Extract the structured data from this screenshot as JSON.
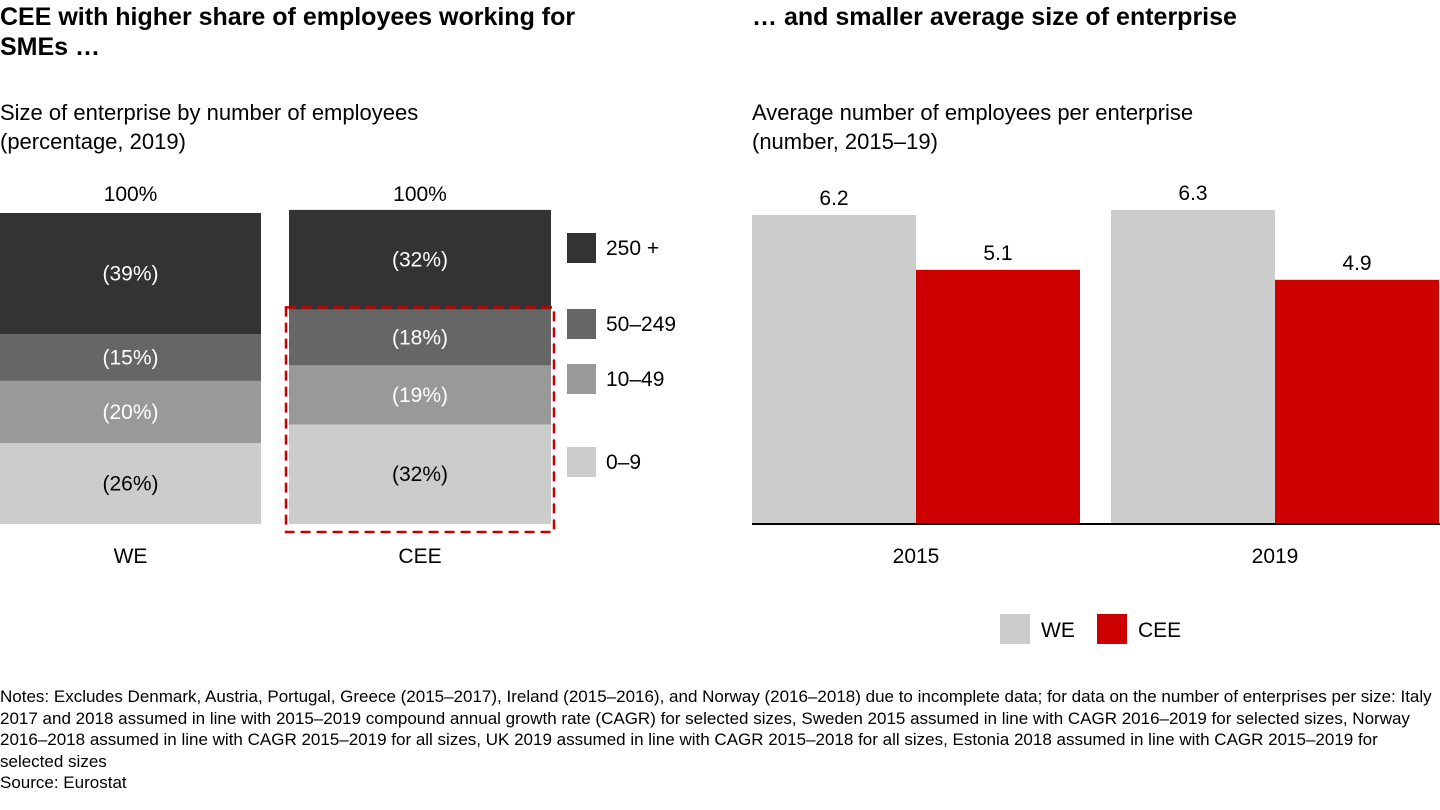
{
  "left_title": "CEE with higher share of employees working for SMEs …",
  "left_subtitle_line1": "Size of enterprise by number of employees",
  "left_subtitle_line2": "(percentage, 2019)",
  "right_title": "… and smaller average size of enterprise",
  "right_subtitle_line1": "Average number of employees per enterprise",
  "right_subtitle_line2": "(number, 2015–19)",
  "notes": "Notes: Excludes Denmark, Austria, Portugal, Greece (2015–2017), Ireland (2015–2016), and Norway (2016–2018) due to incomplete data; for data on the number of enterprises per size: Italy 2017 and 2018 assumed in line with 2015–2019 compound annual growth rate (CAGR) for selected sizes, Sweden 2015 assumed in line with CAGR 2016–2019 for selected sizes, Norway 2016–2018 assumed in line with CAGR 2015–2019 for all sizes, UK 2019 assumed in line with CAGR 2015–2018 for all sizes, Estonia 2018 assumed in line with CAGR 2015–2019 for selected sizes",
  "source": "Source: Eurostat",
  "colors": {
    "s250": "#333333",
    "s50": "#666666",
    "s10": "#999999",
    "s0": "#cccccc",
    "we": "#cccccc",
    "cee": "#cc0000",
    "highlight": "#cc0000"
  },
  "chart_data": [
    {
      "type": "bar",
      "stacked": true,
      "categories": [
        "WE",
        "CEE"
      ],
      "totals_labels": [
        "100%",
        "100%"
      ],
      "series": [
        {
          "name": "0–9",
          "values": [
            26,
            32
          ],
          "labels": [
            "(26%)",
            "(32%)"
          ]
        },
        {
          "name": "10–49",
          "values": [
            20,
            19
          ],
          "labels": [
            "(20%)",
            "(19%)"
          ]
        },
        {
          "name": "50–249",
          "values": [
            15,
            18
          ],
          "labels": [
            "(15%)",
            "(18%)"
          ]
        },
        {
          "name": "250 +",
          "values": [
            39,
            32
          ],
          "labels": [
            "(39%)",
            "(32%)"
          ]
        }
      ],
      "ylim": [
        0,
        100
      ],
      "legend": "right"
    },
    {
      "type": "bar",
      "categories": [
        "2015",
        "2019"
      ],
      "series": [
        {
          "name": "WE",
          "values": [
            6.2,
            6.3
          ],
          "labels": [
            "6.2",
            "6.3"
          ]
        },
        {
          "name": "CEE",
          "values": [
            5.1,
            4.9
          ],
          "labels": [
            "5.1",
            "4.9"
          ]
        }
      ],
      "legend": "bottom"
    }
  ]
}
